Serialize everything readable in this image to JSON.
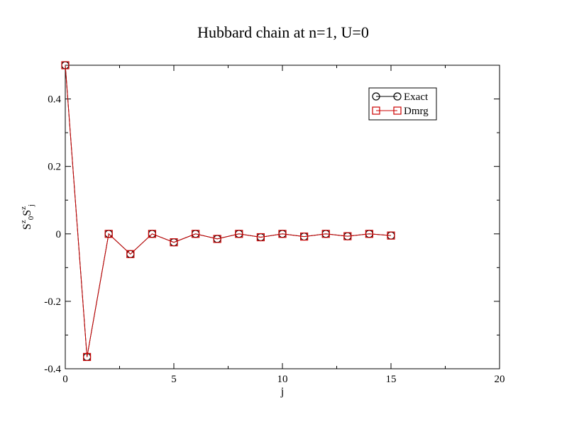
{
  "chart_data": {
    "type": "line",
    "title": "Hubbard chain at n=1, U=0",
    "xlabel": "j",
    "ylabel": {
      "base1": "S",
      "sup1": "z",
      "sub1": "0",
      "base2": "S",
      "sup2": "z",
      "sub2": "j"
    },
    "xlim": [
      0,
      20
    ],
    "ylim": [
      -0.4,
      0.5
    ],
    "x_ticks": [
      0,
      5,
      10,
      15,
      20
    ],
    "x_tick_labels": [
      "0",
      "5",
      "10",
      "15",
      "20"
    ],
    "y_ticks": [
      -0.4,
      -0.2,
      0,
      0.2,
      0.4
    ],
    "y_tick_labels": [
      "-0.4",
      "-0.2",
      "0",
      "0.2",
      "0.4"
    ],
    "grid": false,
    "legend_position": "top-right",
    "x": [
      0,
      1,
      2,
      3,
      4,
      5,
      6,
      7,
      8,
      9,
      10,
      11,
      12,
      13,
      14,
      15
    ],
    "series": [
      {
        "name": "Exact",
        "color": "#000000",
        "marker": "circle",
        "values": [
          0.5,
          -0.365,
          0.0,
          -0.06,
          0.0,
          -0.025,
          0.0,
          -0.015,
          0.0,
          -0.01,
          0.0,
          -0.008,
          0.0,
          -0.007,
          0.0,
          -0.005
        ]
      },
      {
        "name": "Dmrg",
        "color": "#cc0000",
        "marker": "square",
        "values": [
          0.5,
          -0.365,
          0.0,
          -0.06,
          0.0,
          -0.025,
          0.0,
          -0.015,
          0.0,
          -0.01,
          0.0,
          -0.008,
          0.0,
          -0.007,
          0.0,
          -0.005
        ]
      }
    ]
  }
}
